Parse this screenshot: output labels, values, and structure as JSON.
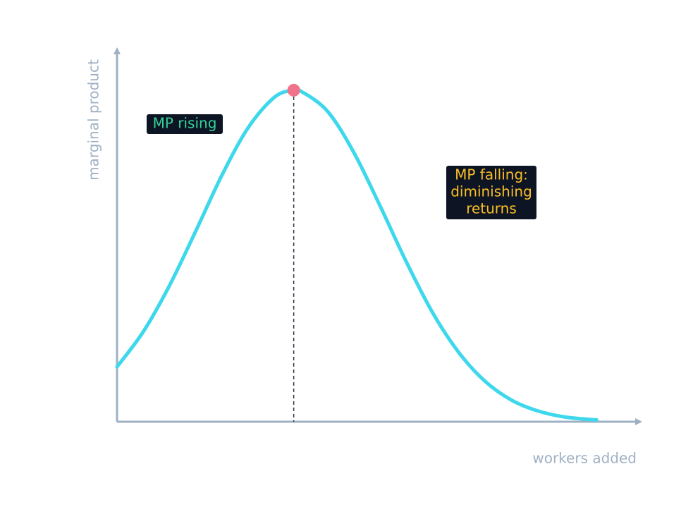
{
  "chart_data": {
    "type": "line",
    "x_label": "workers added",
    "y_label": "marginal product",
    "x": [
      0,
      0.5,
      1,
      1.5,
      2,
      2.5,
      3,
      3.36,
      3.5,
      4,
      4.5,
      5,
      5.5,
      6,
      6.5,
      7,
      7.5,
      8,
      8.5,
      9,
      9.12
    ],
    "series": [
      {
        "color": "#3dd8ec",
        "values": [
          1.47,
          2.41,
          3.65,
          5.11,
          6.61,
          7.88,
          8.69,
          8.87,
          8.84,
          8.31,
          7.21,
          5.78,
          4.28,
          2.92,
          1.85,
          1.08,
          0.58,
          0.29,
          0.13,
          0.06,
          0.05
        ]
      }
    ],
    "peak": {
      "x": 3.36,
      "y": 8.87,
      "color": "#f0738b"
    },
    "xlim": [
      0,
      10
    ],
    "ylim": [
      0,
      10
    ],
    "annotations": [
      {
        "lines": [
          "MP rising"
        ],
        "color": "#34d399"
      },
      {
        "lines": [
          "MP falling:",
          "diminishing",
          "returns"
        ],
        "color": "#fbbf24"
      }
    ]
  }
}
